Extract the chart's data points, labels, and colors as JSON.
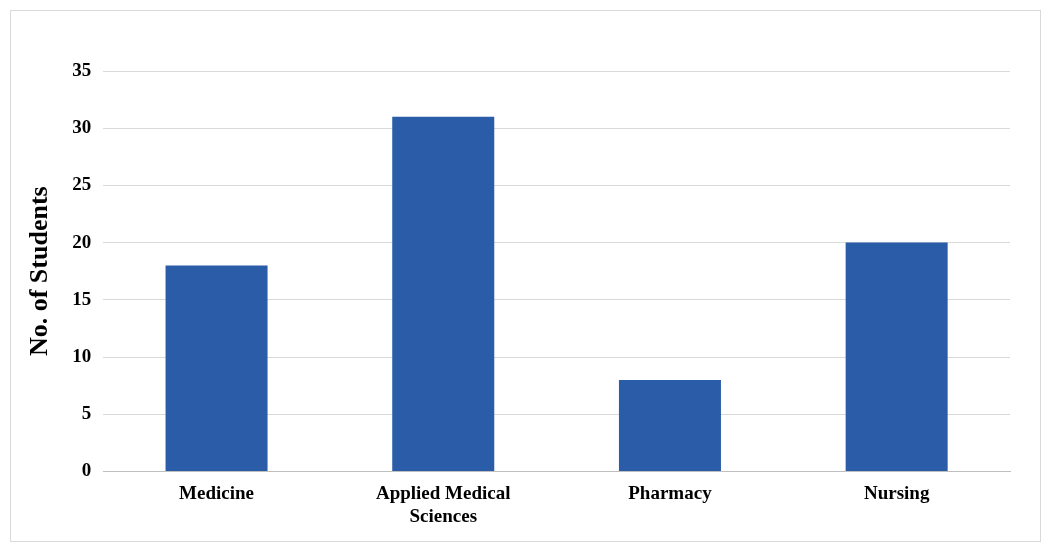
{
  "chart_data": {
    "type": "bar",
    "ylabel": "No. of Students",
    "categories": [
      [
        "Medicine"
      ],
      [
        "Applied Medical",
        "Sciences"
      ],
      [
        "Pharmacy"
      ],
      [
        "Nursing"
      ]
    ],
    "values": [
      18,
      31,
      8,
      20
    ],
    "color": "#2a5ca8",
    "ylim": [
      0,
      35
    ],
    "yticks": [
      0,
      5,
      10,
      15,
      20,
      25,
      30,
      35
    ],
    "grid": "y"
  }
}
